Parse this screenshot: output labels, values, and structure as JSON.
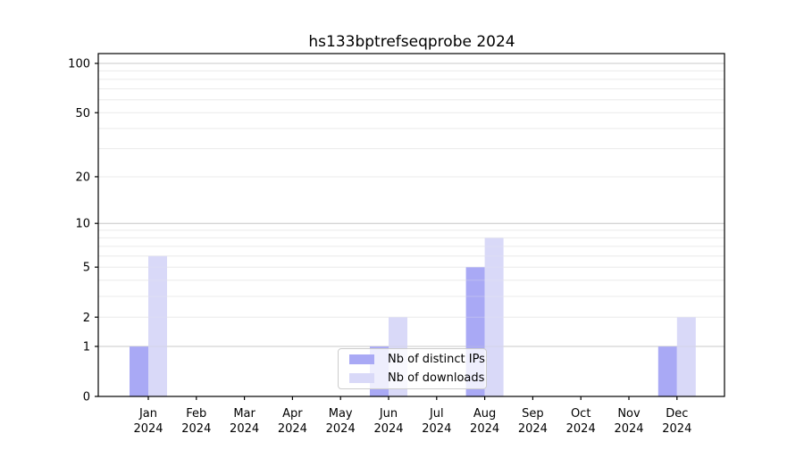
{
  "chart_data": {
    "type": "bar",
    "title": "hs133bptrefseqprobe 2024",
    "categories": [
      "Jan",
      "Feb",
      "Mar",
      "Apr",
      "May",
      "Jun",
      "Jul",
      "Aug",
      "Sep",
      "Oct",
      "Nov",
      "Dec"
    ],
    "year_label": "2024",
    "series": [
      {
        "name": "Nb of distinct IPs",
        "color": "#a9a9f5",
        "values": [
          1,
          0,
          0,
          0,
          0,
          1,
          0,
          5,
          0,
          0,
          0,
          1
        ]
      },
      {
        "name": "Nb of downloads",
        "color": "#d9d9f8",
        "values": [
          6,
          0,
          0,
          0,
          0,
          2,
          0,
          8,
          0,
          0,
          0,
          2
        ]
      }
    ],
    "yticks": [
      0,
      1,
      2,
      5,
      10,
      20,
      50,
      100
    ],
    "ylim": [
      0,
      115
    ],
    "scale": "log10(1+value)",
    "grid": {
      "minor_values": [
        2,
        3,
        4,
        5,
        6,
        7,
        8,
        9,
        20,
        30,
        40,
        50,
        60,
        70,
        80,
        90
      ],
      "major_values": [
        1,
        10,
        100
      ],
      "minor_color": "#ebebeb",
      "major_color": "#c9c9c9"
    },
    "axis_color": "#000000",
    "legend_position": "lower-center"
  }
}
